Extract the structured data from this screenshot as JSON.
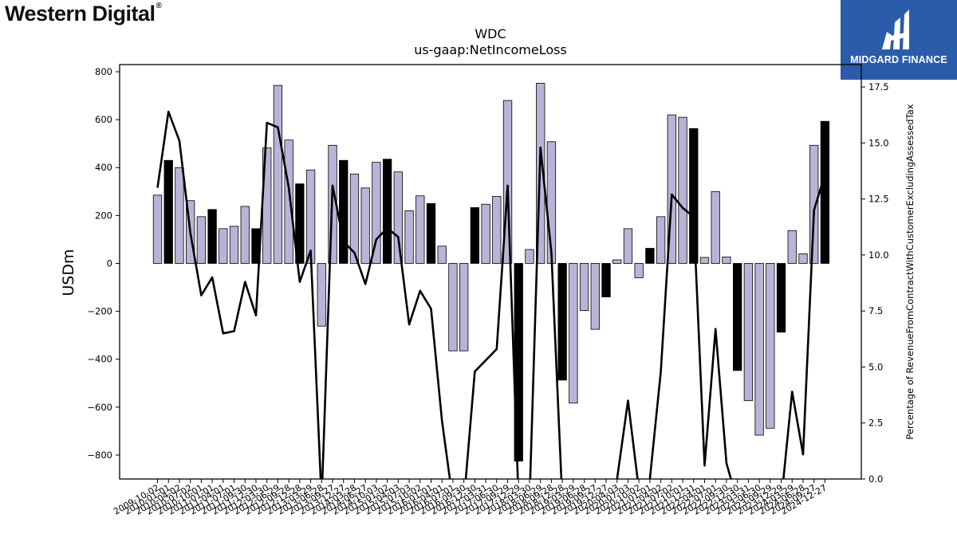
{
  "brand": {
    "company": "Western Digital",
    "partner": "MIDGARD FINANCE"
  },
  "chart_data": {
    "type": "bar",
    "title": "WDC",
    "subtitle": "us-gaap:NetIncomeLoss",
    "ylabel": "USDm",
    "y2label": "Percentage of RevenueFromContractWithCustomerExcludingAssessedTax",
    "ylim": [
      -900,
      830
    ],
    "y2lim": [
      0,
      18.5
    ],
    "yticks": [
      -800,
      -600,
      -400,
      -200,
      0,
      200,
      400,
      600,
      800
    ],
    "y2ticks": [
      0.0,
      2.5,
      5.0,
      7.5,
      10.0,
      12.5,
      15.0,
      17.5
    ],
    "categories": [
      "2009-10-02",
      "2010-01-01",
      "2010-04-02",
      "2010-07-02",
      "2010-10-01",
      "2011-01-01",
      "2011-04-01",
      "2011-07-01",
      "2011-09-30",
      "2011-12-30",
      "2012-03-30",
      "2012-06-29",
      "2012-09-28",
      "2012-12-28",
      "2013-03-29",
      "2013-06-28",
      "2013-09-27",
      "2013-12-27",
      "2014-03-28",
      "2014-06-27",
      "2014-10-03",
      "2015-01-02",
      "2015-04-03",
      "2015-07-03",
      "2015-10-02",
      "2016-01-01",
      "2016-04-01",
      "2016-07-01",
      "2016-09-30",
      "2016-12-30",
      "2017-03-31",
      "2017-06-30",
      "2017-09-29",
      "2017-12-29",
      "2018-03-30",
      "2018-06-29",
      "2018-09-28",
      "2018-12-28",
      "2019-03-29",
      "2019-06-28",
      "2019-09-27",
      "2019-12-27",
      "2020-04-03",
      "2020-07-03",
      "2020-10-02",
      "2021-01-01",
      "2021-04-02",
      "2021-07-02",
      "2021-10-01",
      "2021-12-31",
      "2022-04-01",
      "2022-07-01",
      "2022-09-30",
      "2022-12-30",
      "2023-03-31",
      "2023-06-30",
      "2023-09-29",
      "2023-12-29",
      "2024-03-29",
      "2024-06-28",
      "2024-09-27",
      "2024-12-27"
    ],
    "xtick_labels": [
      "2009-10-02",
      "2010-01-01",
      "2010-04-02",
      "2010-07-02",
      "2010-10-01",
      "2011-01-01",
      "2011-04-01",
      "2011-07-01",
      "2011-09-30",
      "2011-12-30",
      "2012-03-30",
      "2012-06-29",
      "2012-09-28",
      "2012-12-28",
      "2013-03-29",
      "2013-06-28",
      "2013-09-27",
      "2013-12-27",
      "2014-03-28",
      "2014-06-27",
      "2014-10-03",
      "2015-01-02",
      "2015-04-03",
      "2015-07-03",
      "2015-10-02",
      "2016-01-01",
      "2016-04-01",
      "2016-07-01",
      "2016-09-30",
      "2016-12-30",
      "2017-03-31",
      "2017-06-30",
      "2017-09-29",
      "2017-12-29",
      "2018-03-30",
      "2018-06-29",
      "2018-09-28",
      "2018-12-28",
      "2019-03-29",
      "2019-06-28",
      "2019-09-27",
      "2019-12-27",
      "2020-04-03",
      "2020-07-03",
      "2020-10-02",
      "2021-01-01",
      "2021-04-02",
      "2021-07-02",
      "2021-10-01",
      "2021-12-31",
      "2022-04-01",
      "2022-07-01",
      "2022-09-30",
      "2022-12-30",
      "2023-03-31",
      "2023-06-30",
      "2023-09-29",
      "2023-12-29",
      "2024-03-29",
      "2024-06-28",
      "2024-09-27",
      "2024-12-27"
    ],
    "series": [
      {
        "type": "bar",
        "axis": "left",
        "values": [
          285,
          430,
          400,
          262,
          195,
          225,
          145,
          155,
          238,
          145,
          482,
          743,
          515,
          332,
          390,
          -262,
          493,
          430,
          373,
          315,
          422,
          435,
          382,
          220,
          282,
          250,
          72,
          -365,
          -365,
          233,
          247,
          280,
          680,
          -825,
          58,
          752,
          508,
          -487,
          -583,
          -197,
          -275,
          -140,
          15,
          145,
          -60,
          63,
          195,
          620,
          610,
          563,
          25,
          300,
          27,
          -447,
          -573,
          -717,
          -688,
          -287,
          137,
          40,
          493,
          593
        ],
        "highlight": [
          false,
          true,
          false,
          false,
          false,
          true,
          false,
          false,
          false,
          true,
          false,
          false,
          false,
          true,
          false,
          false,
          false,
          true,
          false,
          false,
          false,
          true,
          false,
          false,
          false,
          true,
          false,
          false,
          false,
          true,
          false,
          false,
          false,
          true,
          false,
          false,
          false,
          true,
          false,
          false,
          false,
          true,
          false,
          false,
          false,
          true,
          false,
          false,
          false,
          true,
          false,
          false,
          false,
          true,
          false,
          false,
          false,
          true,
          false,
          false,
          false,
          true
        ]
      },
      {
        "type": "line",
        "axis": "right",
        "values": [
          13.0,
          16.4,
          15.1,
          11.0,
          8.2,
          9.0,
          6.5,
          6.6,
          8.8,
          7.3,
          15.9,
          15.7,
          13.0,
          8.8,
          10.2,
          -1.0,
          13.1,
          10.6,
          10.1,
          8.7,
          10.7,
          11.2,
          10.8,
          6.9,
          8.4,
          7.6,
          2.6,
          -1.0,
          -1.0,
          4.8,
          5.3,
          5.8,
          13.1,
          -1.0,
          -1.0,
          14.8,
          10.1,
          -1.0,
          -1.0,
          -1.0,
          -1.0,
          -1.0,
          0.0,
          3.5,
          -0.5,
          0.0,
          4.8,
          12.7,
          12.1,
          11.7,
          0.6,
          6.7,
          0.7,
          -1.0,
          -1.0,
          -1.0,
          -1.0,
          -1.0,
          3.9,
          1.1,
          12.0,
          13.6
        ]
      }
    ],
    "colors": {
      "bar": "#b8b4d8",
      "bar_highlight": "#000000",
      "line": "#000000"
    }
  }
}
